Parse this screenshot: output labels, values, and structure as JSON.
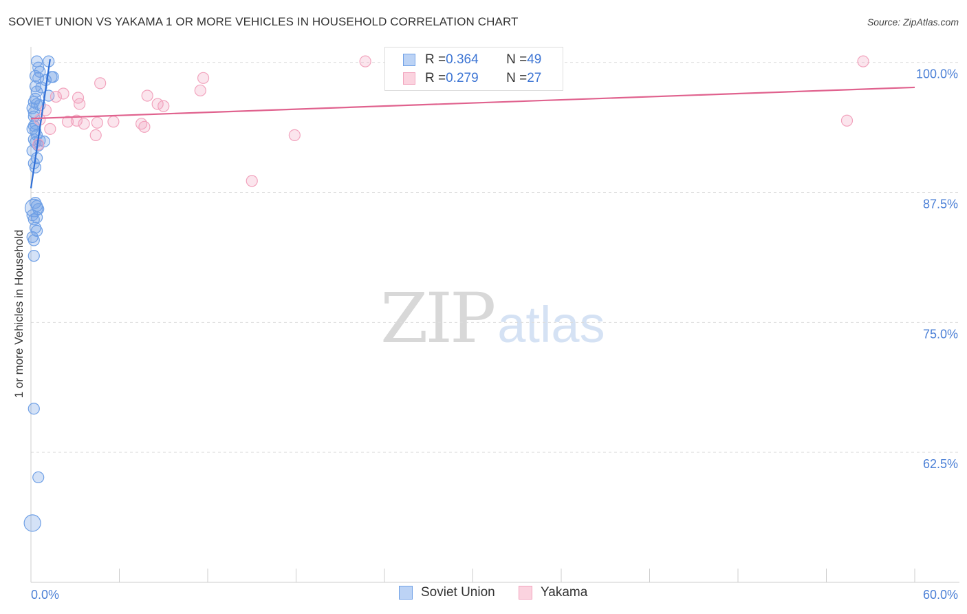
{
  "title": "SOVIET UNION VS YAKAMA 1 OR MORE VEHICLES IN HOUSEHOLD CORRELATION CHART",
  "source": "Source: ZipAtlas.com",
  "watermark": {
    "zip": "ZIP",
    "atlas": "atlas"
  },
  "legend": {
    "rows": [
      {
        "r_label": "R = ",
        "r_value": "0.364",
        "n_label": "N = ",
        "n_value": "49"
      },
      {
        "r_label": "R = ",
        "r_value": "0.279",
        "n_label": "N = ",
        "n_value": "27"
      }
    ]
  },
  "chart_data": {
    "type": "scatter",
    "title": "SOVIET UNION VS YAKAMA 1 OR MORE VEHICLES IN HOUSEHOLD CORRELATION CHART",
    "xlabel": "",
    "ylabel": "1 or more Vehicles in Household",
    "xlim": [
      0,
      60
    ],
    "ylim": [
      50,
      101.5
    ],
    "x_tick_labels": [
      "0.0%",
      "60.0%"
    ],
    "y_ticks": [
      {
        "value": 100,
        "label": "100.0%"
      },
      {
        "value": 87.5,
        "label": "87.5%"
      },
      {
        "value": 75,
        "label": "75.0%"
      },
      {
        "value": 62.5,
        "label": "62.5%"
      }
    ],
    "grid": "horizontal dashed",
    "legend_position": "bottom-center",
    "series": [
      {
        "name": "Soviet Union",
        "color": "#6fa0e6",
        "line_color": "#2f6fd6",
        "trend": {
          "x": [
            0.0,
            1.3
          ],
          "y": [
            87.9,
            100.3
          ]
        },
        "points": [
          [
            0.4,
            100.1
          ],
          [
            1.2,
            100.1
          ],
          [
            0.5,
            99.5
          ],
          [
            0.6,
            99.1
          ],
          [
            0.3,
            98.7
          ],
          [
            0.5,
            98.5
          ],
          [
            1.0,
            98.3
          ],
          [
            1.4,
            98.6
          ],
          [
            1.5,
            98.6
          ],
          [
            0.3,
            97.7
          ],
          [
            0.7,
            97.6
          ],
          [
            0.4,
            97.2
          ],
          [
            1.2,
            96.8
          ],
          [
            0.2,
            96.2
          ],
          [
            0.4,
            96.0
          ],
          [
            0.1,
            95.6
          ],
          [
            0.2,
            94.8
          ],
          [
            0.3,
            94.1
          ],
          [
            0.1,
            93.6
          ],
          [
            0.3,
            93.4
          ],
          [
            0.4,
            93.0
          ],
          [
            0.2,
            92.6
          ],
          [
            0.6,
            92.5
          ],
          [
            0.3,
            92.3
          ],
          [
            0.9,
            92.4
          ],
          [
            0.4,
            90.8
          ],
          [
            0.2,
            90.3
          ],
          [
            0.3,
            86.5
          ],
          [
            0.4,
            86.2
          ],
          [
            0.2,
            86.0
          ],
          [
            0.5,
            85.9
          ],
          [
            0.1,
            85.3
          ],
          [
            0.4,
            85.1
          ],
          [
            0.2,
            84.9
          ],
          [
            0.3,
            84.1
          ],
          [
            0.4,
            83.8
          ],
          [
            0.1,
            83.2
          ],
          [
            0.2,
            82.9
          ],
          [
            0.2,
            81.4
          ],
          [
            0.2,
            66.7
          ],
          [
            0.5,
            60.1
          ],
          [
            0.1,
            55.7
          ],
          [
            0.3,
            96.5
          ],
          [
            0.6,
            95.9
          ],
          [
            0.2,
            93.9
          ],
          [
            0.5,
            92.0
          ],
          [
            0.1,
            91.5
          ],
          [
            0.3,
            89.9
          ],
          [
            0.2,
            95.2
          ]
        ],
        "sizes": [
          1,
          1,
          1,
          1,
          1,
          1,
          1,
          1,
          1,
          1,
          1,
          1,
          1,
          1,
          1,
          1,
          1,
          1,
          1,
          1,
          1,
          1,
          1,
          1,
          1,
          1,
          1,
          1,
          1,
          1.6,
          1,
          1,
          1,
          1,
          1,
          1,
          1,
          1,
          1,
          1,
          1,
          1.5,
          1,
          1,
          1,
          1,
          1,
          1,
          1
        ]
      },
      {
        "name": "Yakama",
        "color": "#f2a3bd",
        "line_color": "#e0628e",
        "trend": {
          "x": [
            0.0,
            60.0
          ],
          "y": [
            94.6,
            97.6
          ]
        },
        "points": [
          [
            22.7,
            100.1
          ],
          [
            56.5,
            100.1
          ],
          [
            11.7,
            98.5
          ],
          [
            4.7,
            98.0
          ],
          [
            2.2,
            97.0
          ],
          [
            1.7,
            96.7
          ],
          [
            8.6,
            96.0
          ],
          [
            9.0,
            95.8
          ],
          [
            3.2,
            96.6
          ],
          [
            3.3,
            96.0
          ],
          [
            1.0,
            95.4
          ],
          [
            11.5,
            97.3
          ],
          [
            7.9,
            96.8
          ],
          [
            2.5,
            94.3
          ],
          [
            3.1,
            94.4
          ],
          [
            5.6,
            94.3
          ],
          [
            4.5,
            94.2
          ],
          [
            3.6,
            94.1
          ],
          [
            7.5,
            94.1
          ],
          [
            7.7,
            93.8
          ],
          [
            1.3,
            93.6
          ],
          [
            0.6,
            94.5
          ],
          [
            4.4,
            93.0
          ],
          [
            17.9,
            93.0
          ],
          [
            55.4,
            94.4
          ],
          [
            15.0,
            88.6
          ],
          [
            0.5,
            92.1
          ]
        ]
      }
    ]
  }
}
